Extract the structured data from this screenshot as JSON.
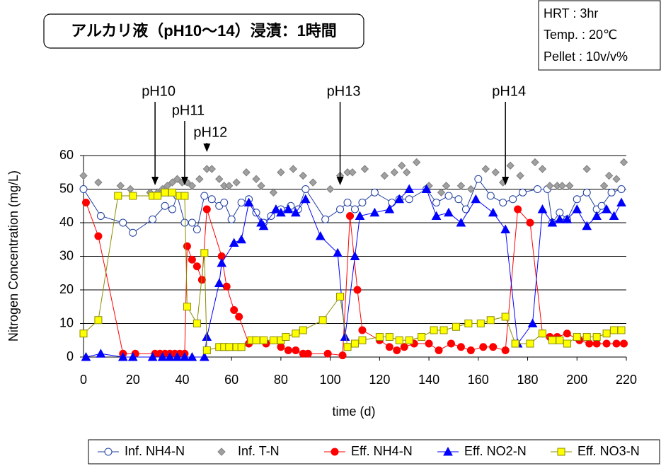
{
  "chart_data": {
    "type": "line",
    "title": "アルカリ液（pH10～14）浸漬：1時間",
    "info": [
      "HRT : 3hr",
      "Temp. : 20℃",
      "Pellet : 10v/v%"
    ],
    "xlabel": "time (d)",
    "ylabel": "Nitrogen Concentration (mg/L)",
    "xlim": [
      0,
      220
    ],
    "xticks": [
      0,
      20,
      40,
      60,
      80,
      100,
      120,
      140,
      160,
      180,
      200,
      220
    ],
    "ylim": [
      0,
      60
    ],
    "yticks": [
      0,
      10,
      20,
      30,
      40,
      50,
      60
    ],
    "grid": true,
    "annotations": [
      {
        "text": "pH10",
        "x": 29
      },
      {
        "text": "pH11",
        "x": 41
      },
      {
        "text": "pH12",
        "x": 50
      },
      {
        "text": "pH13",
        "x": 104
      },
      {
        "text": "pH14",
        "x": 171
      }
    ],
    "series": [
      {
        "name": "Inf. NH4-N",
        "color": "#1f3fa0",
        "fill": "#ffffff",
        "marker": "circle",
        "line": true,
        "x": [
          0,
          7,
          16,
          20,
          28,
          33,
          36,
          38,
          41,
          44,
          46,
          49,
          52,
          55,
          57,
          60,
          64,
          67,
          70,
          73,
          76,
          80,
          84,
          87,
          90,
          98,
          104,
          107,
          110,
          113,
          118,
          125,
          128,
          132,
          139,
          143,
          148,
          152,
          155,
          160,
          165,
          170,
          174,
          178,
          184,
          188,
          190,
          193,
          196,
          200,
          204,
          208,
          210,
          214,
          218
        ],
        "values": [
          50,
          42,
          40,
          37,
          41,
          45,
          44,
          48,
          40,
          40,
          38,
          48,
          47,
          45,
          46,
          41,
          46,
          47,
          43,
          40,
          42,
          44,
          45,
          44,
          50,
          41,
          44,
          46,
          44,
          46,
          49,
          46,
          47,
          47,
          50,
          46,
          48,
          47,
          44,
          53,
          48,
          46,
          47,
          49,
          50,
          50,
          40,
          43,
          41,
          47,
          49,
          44,
          45,
          49,
          50
        ]
      },
      {
        "name": "Inf. T-N",
        "color": "#808080",
        "fill": "#a0a0a0",
        "marker": "diamond",
        "line": false,
        "x": [
          0,
          6,
          15,
          19,
          27,
          30,
          32,
          34,
          36,
          38,
          40,
          42,
          44,
          47,
          50,
          52,
          55,
          57,
          59,
          62,
          66,
          70,
          72,
          77,
          80,
          85,
          89,
          93,
          100,
          104,
          107,
          109,
          114,
          122,
          126,
          129,
          131,
          135,
          140,
          145,
          147,
          153,
          157,
          163,
          167,
          170,
          173,
          177,
          183,
          186,
          189,
          192,
          194,
          197,
          204,
          211,
          213,
          216,
          219
        ],
        "values": [
          54,
          52,
          51,
          50,
          49,
          49,
          50,
          51,
          52,
          53,
          52,
          52,
          51,
          53,
          56,
          56,
          53,
          51,
          51,
          52,
          55,
          53,
          51,
          49,
          55,
          56,
          54,
          52,
          50,
          54,
          55,
          55,
          56,
          54,
          55,
          57,
          55,
          58,
          51,
          49,
          51,
          51,
          50,
          56,
          55,
          52,
          57,
          54,
          58,
          56,
          51,
          51,
          51,
          51,
          56,
          51,
          54,
          53,
          58
        ]
      },
      {
        "name": "Eff. NH4-N",
        "color": "#ff0000",
        "fill": "#ff0000",
        "marker": "circle",
        "line": true,
        "x": [
          1,
          6,
          16,
          21,
          29,
          31,
          33,
          35,
          37,
          39,
          41,
          42,
          44,
          46,
          48,
          50,
          56,
          58,
          61,
          63,
          67,
          70,
          74,
          77,
          80,
          83,
          86,
          89,
          91,
          99,
          105,
          108,
          111,
          113,
          120,
          124,
          127,
          130,
          134,
          140,
          144,
          149,
          153,
          157,
          162,
          166,
          171,
          176,
          181,
          186,
          189,
          192,
          196,
          201,
          205,
          208,
          212,
          216,
          219
        ],
        "values": [
          46,
          36,
          1,
          1,
          1,
          1,
          1,
          1,
          1,
          1,
          1,
          33,
          29,
          27,
          23,
          44,
          30,
          21,
          14,
          12,
          4,
          5,
          4,
          5,
          3,
          2,
          2,
          1,
          1,
          1,
          0.5,
          42,
          20,
          8,
          5,
          3,
          2,
          3,
          4,
          4,
          2,
          4,
          3,
          2,
          3,
          3,
          2,
          44,
          40,
          7,
          6,
          6,
          7,
          5,
          4,
          4,
          4,
          4,
          4
        ]
      },
      {
        "name": "Eff. NO2-N",
        "color": "#0000ff",
        "fill": "#0000ff",
        "marker": "triangle",
        "line": true,
        "x": [
          1,
          7,
          16,
          20,
          28,
          32,
          35,
          38,
          41,
          44,
          49,
          50,
          55,
          56,
          61,
          64,
          67,
          72,
          73,
          78,
          80,
          83,
          86,
          90,
          96,
          103,
          106,
          110,
          112,
          118,
          124,
          128,
          132,
          139,
          143,
          148,
          153,
          159,
          166,
          171,
          176,
          182,
          186,
          190,
          193,
          196,
          200,
          204,
          208,
          212,
          215,
          218
        ],
        "values": [
          0,
          1,
          0,
          0,
          0,
          0,
          0,
          0,
          0,
          0,
          0,
          6,
          22,
          28,
          34,
          35,
          46,
          40,
          39,
          44,
          43,
          44,
          43,
          47,
          36,
          31,
          6,
          30,
          42,
          43,
          44,
          47,
          50,
          50,
          42,
          43,
          40,
          47,
          43,
          38,
          4,
          10,
          44,
          40,
          41,
          41,
          44,
          39,
          42,
          44,
          42,
          46
        ]
      },
      {
        "name": "Eff. NO3-N",
        "color": "#8c8c00",
        "fill": "#ffff00",
        "marker": "square",
        "line": true,
        "x": [
          0,
          6,
          14,
          20,
          28,
          30,
          33,
          36,
          39,
          41,
          42,
          46,
          49,
          50,
          55,
          57,
          59,
          62,
          64,
          68,
          70,
          73,
          77,
          80,
          82,
          86,
          89,
          97,
          104,
          107,
          110,
          113,
          120,
          124,
          128,
          132,
          137,
          142,
          146,
          151,
          156,
          161,
          165,
          171,
          175,
          181,
          186,
          190,
          193,
          196,
          200,
          204,
          208,
          212,
          215,
          218
        ],
        "values": [
          7,
          11,
          48,
          48,
          48,
          48,
          49,
          49,
          48,
          48,
          15,
          10,
          31,
          2,
          3,
          3,
          3,
          3,
          3,
          5,
          5,
          5,
          5,
          5,
          6,
          7,
          8,
          11,
          18,
          3,
          4,
          5,
          6,
          6,
          5,
          5,
          6,
          8,
          8,
          9,
          10,
          10,
          11,
          12,
          4,
          4,
          7,
          5,
          5,
          4,
          6,
          6,
          6,
          7,
          8,
          8
        ]
      }
    ]
  }
}
